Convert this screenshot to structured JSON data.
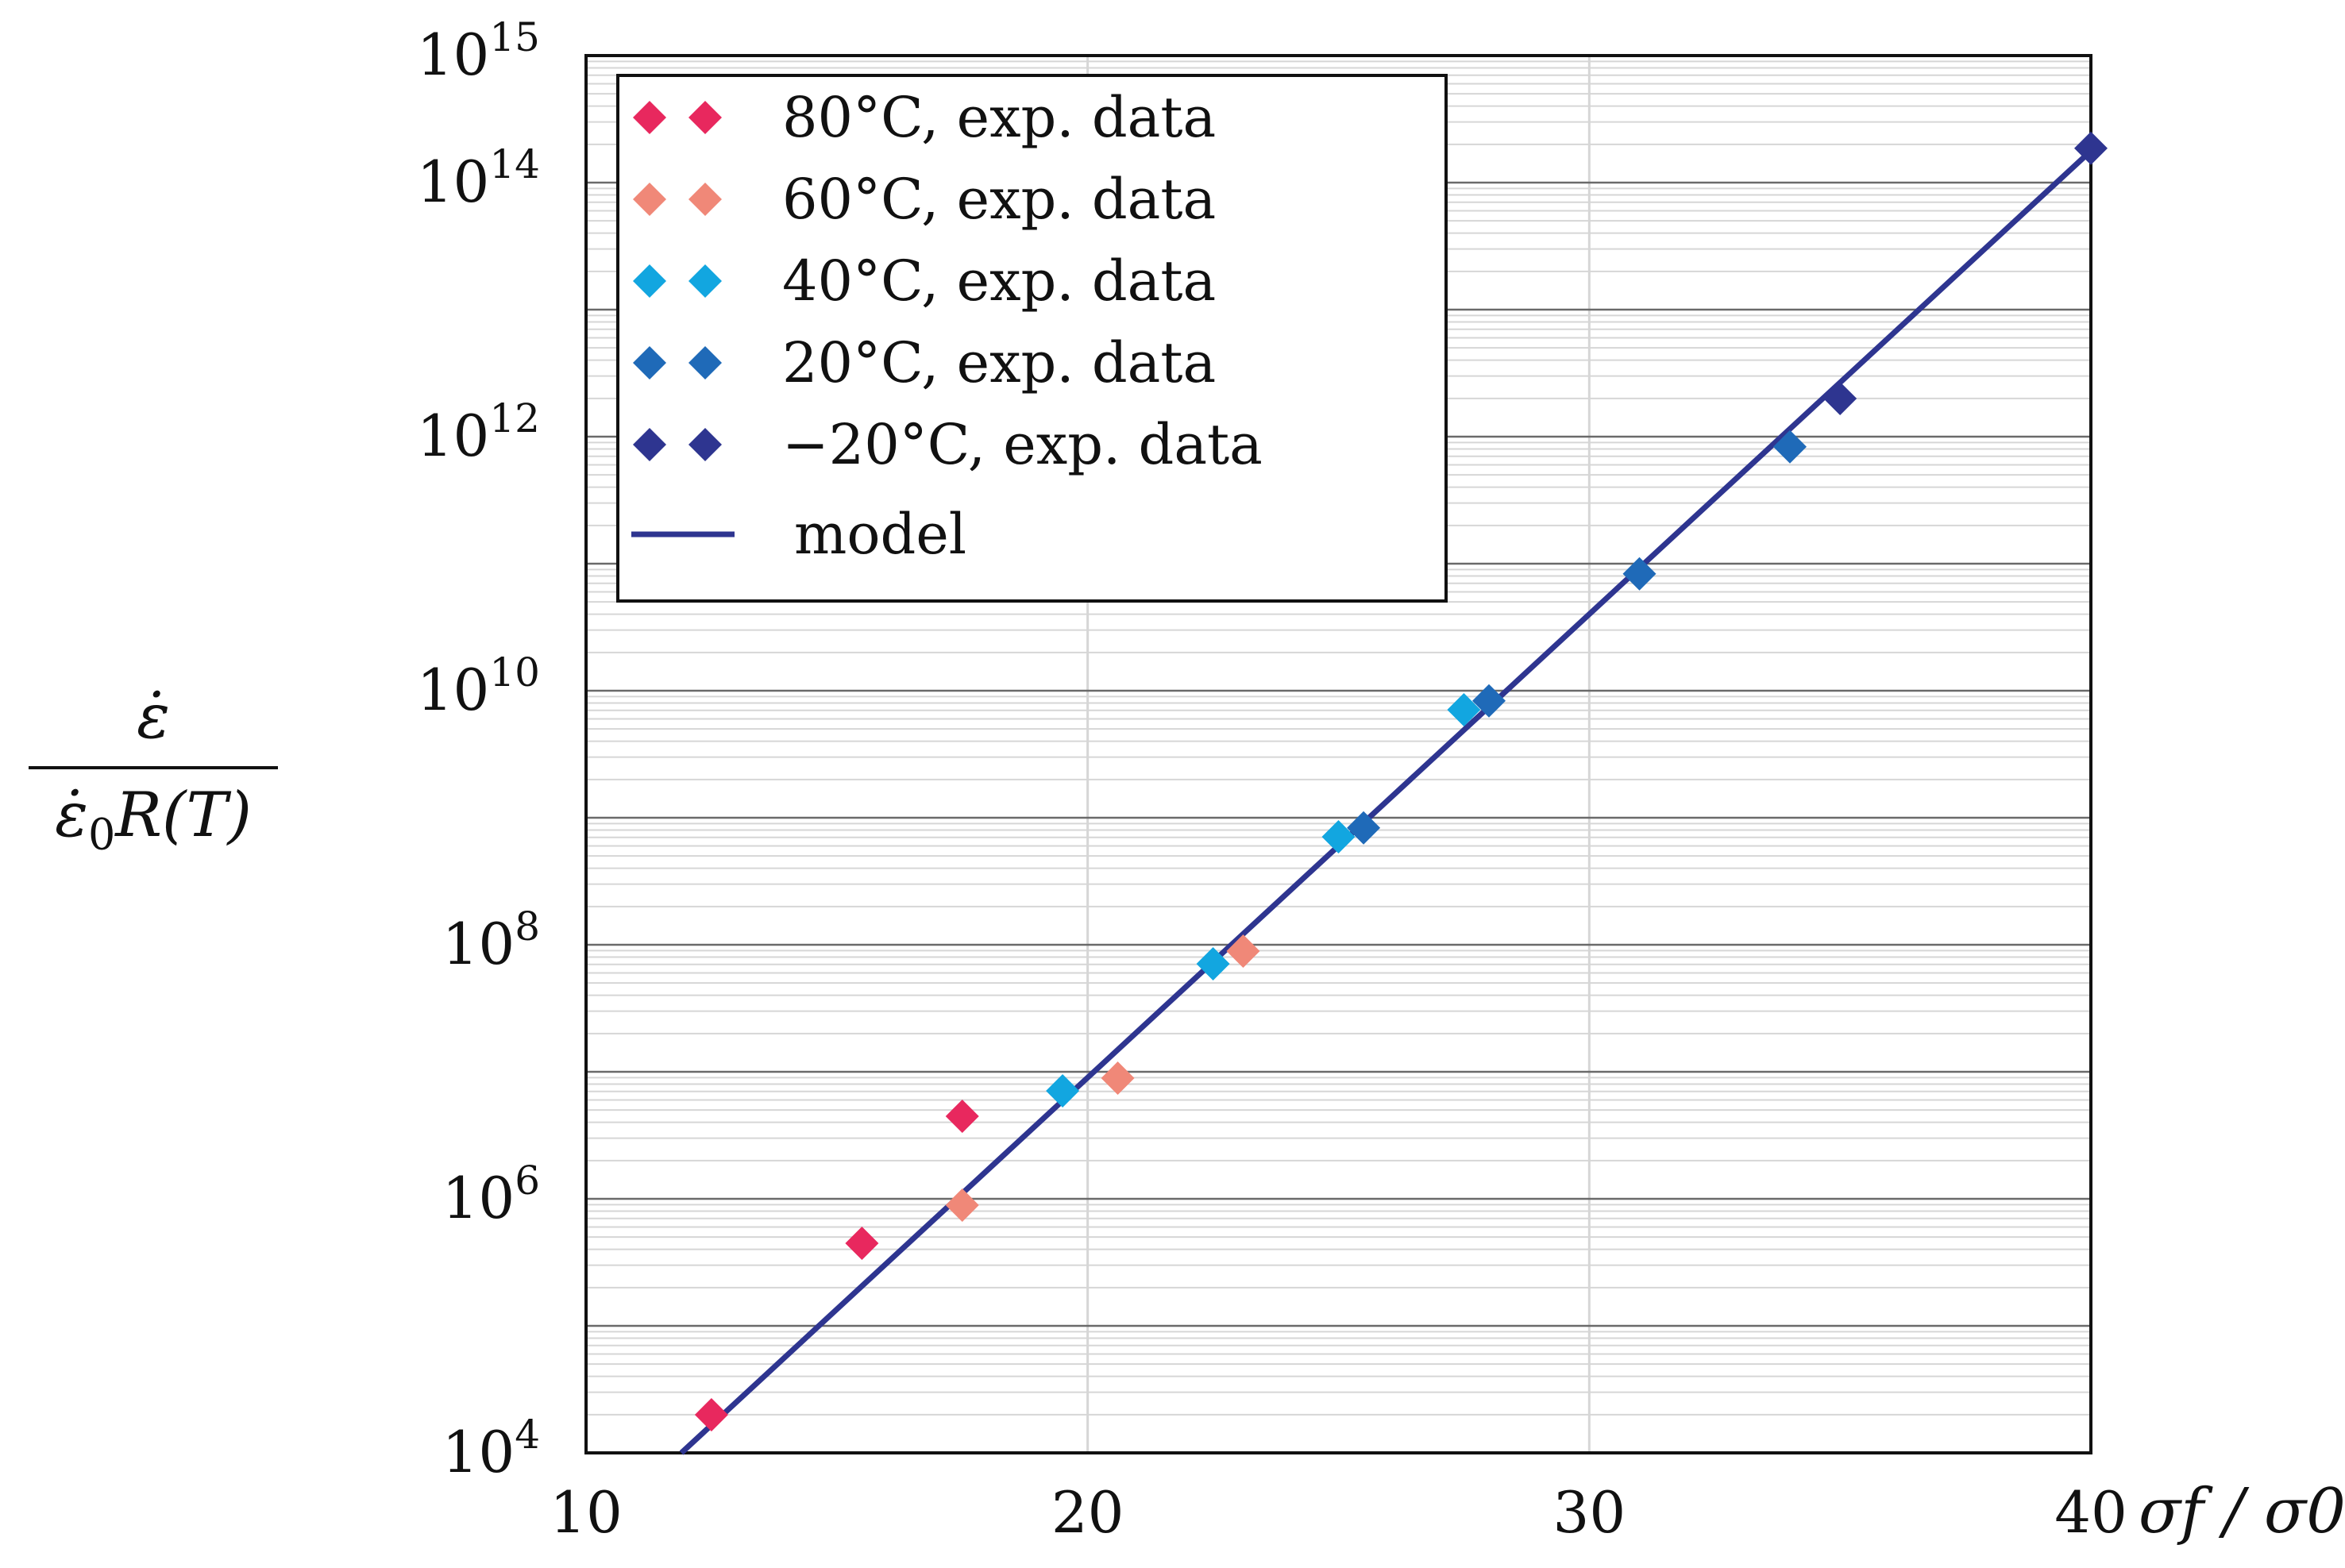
{
  "chart_data": {
    "type": "scatter",
    "xlabel": "σf / σ0",
    "ylabel": {
      "numerator": "ε̇",
      "denominator_base": "ε̇",
      "denominator_sub": "0",
      "denominator_rest": "R(T)"
    },
    "xlim": [
      10,
      40
    ],
    "ylim_exp": [
      4,
      15
    ],
    "y_scale": "log10",
    "x_ticks": [
      10,
      20,
      30,
      40
    ],
    "x_tick_labels": [
      "10",
      "20",
      "30",
      "40"
    ],
    "y_ticks_exp": [
      4,
      6,
      8,
      10,
      12,
      14,
      15
    ],
    "y_tick_base": "10",
    "y_tick_exponents": [
      "4",
      "6",
      "8",
      "10",
      "12",
      "14",
      "15"
    ],
    "grid": true,
    "legend_position": "top-left",
    "series": [
      {
        "name": "80°C, exp. data",
        "color": "#e8285e",
        "marker": "diamond",
        "points": [
          [
            12.5,
            4.3
          ],
          [
            15.5,
            5.65
          ],
          [
            17.5,
            6.65
          ]
        ]
      },
      {
        "name": "60°C, exp. data",
        "color": "#f08878",
        "marker": "diamond",
        "points": [
          [
            17.5,
            5.95
          ],
          [
            20.6,
            6.95
          ],
          [
            23.1,
            7.95
          ]
        ]
      },
      {
        "name": "40°C, exp. data",
        "color": "#12a6e0",
        "marker": "diamond",
        "points": [
          [
            19.5,
            6.85
          ],
          [
            22.5,
            7.85
          ],
          [
            25.0,
            8.85
          ],
          [
            27.5,
            9.85
          ]
        ]
      },
      {
        "name": "20°C, exp. data",
        "color": "#1f6ab8",
        "marker": "diamond",
        "points": [
          [
            25.5,
            8.92
          ],
          [
            28.0,
            9.92
          ],
          [
            31.0,
            10.92
          ],
          [
            34.0,
            11.92
          ]
        ]
      },
      {
        "name": "−20°C, exp. data",
        "color": "#2e3590",
        "marker": "diamond",
        "points": [
          [
            35.0,
            12.3
          ],
          [
            40.0,
            14.27
          ]
        ]
      }
    ],
    "model": {
      "name": "model",
      "color": "#2e3590",
      "line": [
        [
          11.9,
          4.0
        ],
        [
          40.0,
          14.25
        ]
      ]
    }
  }
}
